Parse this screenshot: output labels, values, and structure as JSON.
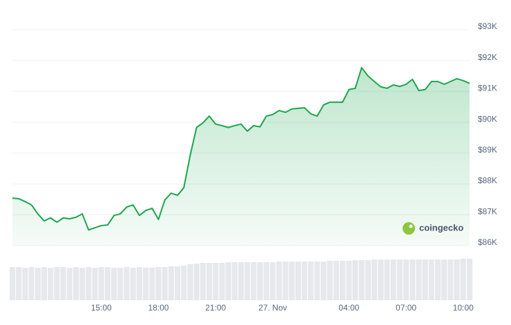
{
  "chart_data": {
    "type": "area",
    "color": "#1aa64b",
    "watermark": "coingecko",
    "categories": [
      null,
      null,
      null,
      null,
      null,
      null,
      null,
      null,
      null,
      null,
      null,
      null,
      null,
      null,
      "15:00",
      null,
      null,
      null,
      null,
      null,
      null,
      null,
      null,
      "18:00",
      null,
      null,
      null,
      null,
      null,
      null,
      null,
      null,
      "21:00",
      null,
      null,
      null,
      null,
      null,
      null,
      null,
      null,
      "27. Nov",
      null,
      null,
      null,
      null,
      null,
      null,
      null,
      null,
      null,
      null,
      null,
      "04:00",
      null,
      null,
      null,
      null,
      null,
      null,
      null,
      null,
      "07:00",
      null,
      null,
      null,
      null,
      null,
      null,
      null,
      null,
      "10:00",
      null
    ],
    "values": [
      87540,
      87520,
      87430,
      87320,
      87030,
      86800,
      86900,
      86760,
      86900,
      86870,
      86920,
      87030,
      86510,
      86580,
      86650,
      86670,
      86980,
      87030,
      87250,
      87320,
      86980,
      87140,
      87210,
      86850,
      87480,
      87700,
      87630,
      87880,
      88930,
      89830,
      89980,
      90200,
      89940,
      89890,
      89830,
      89890,
      89940,
      89710,
      89890,
      89850,
      90200,
      90250,
      90380,
      90320,
      90430,
      90450,
      90470,
      90270,
      90200,
      90560,
      90650,
      90650,
      90650,
      91060,
      91100,
      91770,
      91500,
      91320,
      91150,
      91100,
      91210,
      91160,
      91230,
      91390,
      91030,
      91060,
      91320,
      91320,
      91230,
      91320,
      91410,
      91350,
      91260
    ],
    "ylim": [
      86000,
      93000
    ],
    "yticks": [
      {
        "value": 86000,
        "label": "$86K"
      },
      {
        "value": 87000,
        "label": "$87K"
      },
      {
        "value": 88000,
        "label": "$88K"
      },
      {
        "value": 89000,
        "label": "$89K"
      },
      {
        "value": 90000,
        "label": "$90K"
      },
      {
        "value": 91000,
        "label": "$91K"
      },
      {
        "value": 92000,
        "label": "$92K"
      },
      {
        "value": 93000,
        "label": "$93K"
      }
    ],
    "grid": true,
    "volume": {
      "color": "#e6e8ec",
      "ylim": [
        0,
        60
      ],
      "values": [
        48,
        48,
        47,
        48,
        47,
        48,
        47,
        48,
        48,
        47,
        48,
        47,
        48,
        47,
        48,
        48,
        47,
        47,
        48,
        47,
        48,
        47,
        47,
        48,
        48,
        49,
        49,
        50,
        52,
        53,
        54,
        54,
        54,
        54,
        55,
        55,
        55,
        55,
        55,
        55,
        55,
        55,
        56,
        56,
        56,
        56,
        56,
        56,
        56,
        56,
        57,
        57,
        57,
        57,
        58,
        58,
        58,
        59,
        59,
        59,
        59,
        59,
        59,
        59,
        59,
        59,
        59,
        59,
        59,
        59,
        59,
        60,
        60
      ]
    }
  }
}
